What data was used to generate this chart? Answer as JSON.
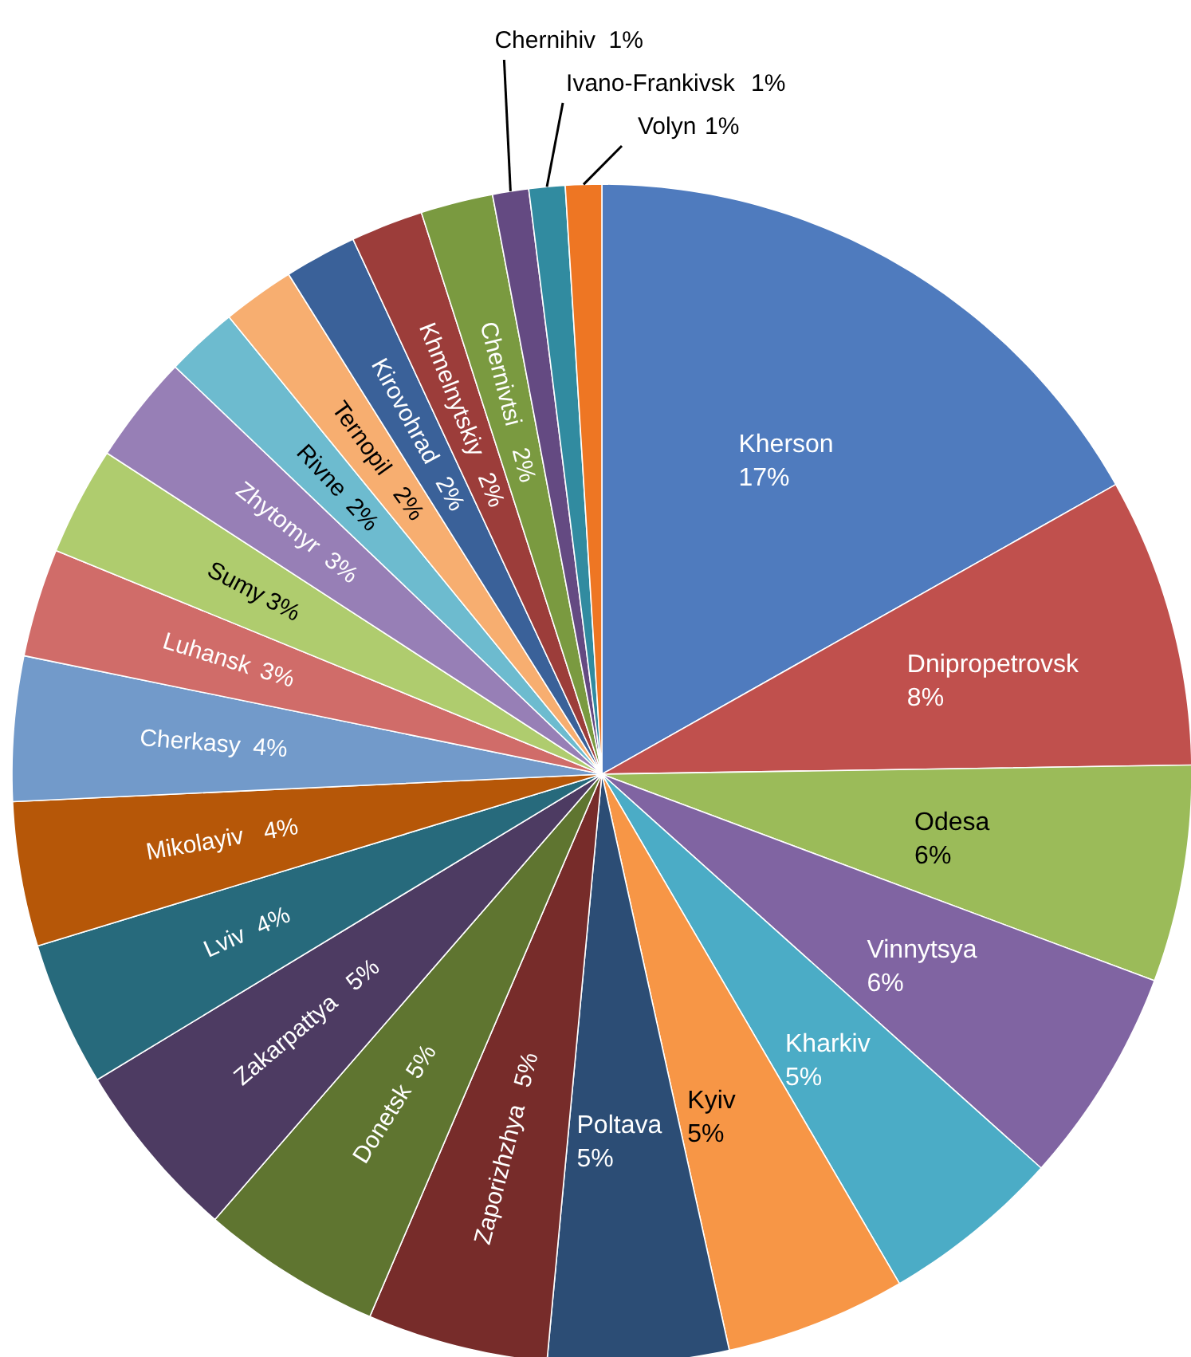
{
  "chart_data": {
    "type": "pie",
    "categories": [
      "Kherson",
      "Dnipropetrovsk",
      "Odesa",
      "Vinnytsya",
      "Kharkiv",
      "Kyiv",
      "Poltava",
      "Zaporizhzhya",
      "Donetsk",
      "Zakarpattya",
      "Lviv",
      "Mikolayiv",
      "Cherkasy",
      "Luhansk",
      "Sumy",
      "Zhytomyr",
      "Rivne",
      "Ternopil",
      "Kirovohrad",
      "Khmelnytskiy",
      "Chernivtsi",
      "Chernihiv",
      "Ivano-Frankivsk",
      "Volyn"
    ],
    "values": [
      17,
      8,
      6,
      6,
      5,
      5,
      5,
      5,
      5,
      5,
      4,
      4,
      4,
      3,
      3,
      3,
      2,
      2,
      2,
      2,
      2,
      1,
      1,
      1
    ],
    "value_labels": [
      "17%",
      "8%",
      "6%",
      "6%",
      "5%",
      "5%",
      "5%",
      "5%",
      "5%",
      "5%",
      "4%",
      "4%",
      "4%",
      "3%",
      "3%",
      "3%",
      "2%",
      "2%",
      "2%",
      "2%",
      "2%",
      "1%",
      "1%",
      "1%"
    ],
    "colors": [
      "#4f7bbe",
      "#c0504d",
      "#9bbb59",
      "#8064a2",
      "#4bacc6",
      "#f79646",
      "#2c4d75",
      "#772c2a",
      "#5f7530",
      "#4d3b62",
      "#276a7c",
      "#b65708",
      "#729aca",
      "#d06c69",
      "#afcc6e",
      "#977fb6",
      "#6dbbcf",
      "#f7ae70",
      "#3a6199",
      "#9c3d3a",
      "#7a9a40",
      "#644a82",
      "#318ba0",
      "#ee7623"
    ]
  }
}
